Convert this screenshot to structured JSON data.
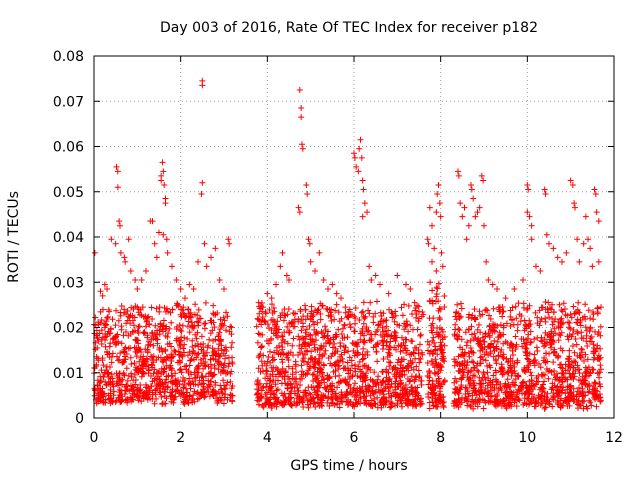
{
  "chart_data": {
    "type": "scatter",
    "title": "Day 003 of 2016, Rate Of TEC Index for receiver p182",
    "xlabel": "GPS time / hours",
    "ylabel": "ROTI / TECUs",
    "xlim": [
      0,
      12
    ],
    "ylim": [
      0,
      0.08
    ],
    "x_ticks": [
      0,
      2,
      4,
      6,
      8,
      10,
      12
    ],
    "x_tick_labels": [
      "0",
      "2",
      "4",
      "6",
      "8",
      "10",
      "12"
    ],
    "y_ticks": [
      0,
      0.01,
      0.02,
      0.03,
      0.04,
      0.05,
      0.06,
      0.07,
      0.08
    ],
    "y_tick_labels": [
      "0",
      "0.01",
      "0.02",
      "0.03",
      "0.04",
      "0.05",
      "0.06",
      "0.07",
      "0.08"
    ],
    "grid": true,
    "marker": "+",
    "marker_color": "#ff0000",
    "series": [
      {
        "name": "ROTI p182",
        "clusters": [
          {
            "x_range": [
              0.0,
              3.2
            ],
            "y_core": [
              0.004,
              0.025
            ],
            "count": 950
          },
          {
            "x_range": [
              3.75,
              7.6
            ],
            "y_core": [
              0.003,
              0.025
            ],
            "count": 1200
          },
          {
            "x_range": [
              7.7,
              8.1
            ],
            "y_core": [
              0.003,
              0.03
            ],
            "count": 160
          },
          {
            "x_range": [
              8.3,
              11.7
            ],
            "y_core": [
              0.003,
              0.025
            ],
            "count": 1050
          }
        ],
        "points": [
          [
            0.02,
            0.0365
          ],
          [
            0.04,
            0.0205
          ],
          [
            0.06,
            0.0135
          ],
          [
            0.1,
            0.017
          ],
          [
            0.15,
            0.028
          ],
          [
            0.2,
            0.027
          ],
          [
            0.25,
            0.0295
          ],
          [
            0.3,
            0.0285
          ],
          [
            0.35,
            0.0235
          ],
          [
            0.4,
            0.0395
          ],
          [
            0.5,
            0.0385
          ],
          [
            0.52,
            0.0555
          ],
          [
            0.55,
            0.0545
          ],
          [
            0.55,
            0.051
          ],
          [
            0.58,
            0.0435
          ],
          [
            0.6,
            0.0425
          ],
          [
            0.62,
            0.0365
          ],
          [
            0.7,
            0.0355
          ],
          [
            0.72,
            0.0345
          ],
          [
            0.8,
            0.0395
          ],
          [
            0.85,
            0.0325
          ],
          [
            0.95,
            0.0305
          ],
          [
            1.0,
            0.0285
          ],
          [
            1.1,
            0.0305
          ],
          [
            1.2,
            0.0325
          ],
          [
            1.3,
            0.0435
          ],
          [
            1.35,
            0.0435
          ],
          [
            1.4,
            0.0385
          ],
          [
            1.45,
            0.0355
          ],
          [
            1.5,
            0.041
          ],
          [
            1.55,
            0.0535
          ],
          [
            1.55,
            0.0525
          ],
          [
            1.58,
            0.0565
          ],
          [
            1.6,
            0.0545
          ],
          [
            1.62,
            0.0515
          ],
          [
            1.65,
            0.0485
          ],
          [
            1.65,
            0.0475
          ],
          [
            1.6,
            0.0405
          ],
          [
            1.68,
            0.0395
          ],
          [
            1.7,
            0.0365
          ],
          [
            1.8,
            0.0335
          ],
          [
            1.9,
            0.0305
          ],
          [
            2.0,
            0.0285
          ],
          [
            2.1,
            0.0265
          ],
          [
            2.2,
            0.0295
          ],
          [
            2.3,
            0.0285
          ],
          [
            2.4,
            0.0345
          ],
          [
            2.5,
            0.0745
          ],
          [
            2.5,
            0.0735
          ],
          [
            2.5,
            0.052
          ],
          [
            2.48,
            0.0495
          ],
          [
            2.55,
            0.0385
          ],
          [
            2.6,
            0.0335
          ],
          [
            2.7,
            0.0355
          ],
          [
            2.8,
            0.0375
          ],
          [
            2.9,
            0.0305
          ],
          [
            3.0,
            0.0285
          ],
          [
            3.1,
            0.0395
          ],
          [
            3.12,
            0.0385
          ],
          [
            3.8,
            0.0255
          ],
          [
            3.9,
            0.0245
          ],
          [
            4.0,
            0.0275
          ],
          [
            4.1,
            0.0265
          ],
          [
            4.2,
            0.0295
          ],
          [
            4.3,
            0.0335
          ],
          [
            4.35,
            0.0365
          ],
          [
            4.45,
            0.0315
          ],
          [
            4.5,
            0.0305
          ],
          [
            4.75,
            0.0725
          ],
          [
            4.78,
            0.0685
          ],
          [
            4.78,
            0.0665
          ],
          [
            4.8,
            0.0605
          ],
          [
            4.82,
            0.0595
          ],
          [
            4.72,
            0.0465
          ],
          [
            4.75,
            0.0455
          ],
          [
            4.9,
            0.0515
          ],
          [
            4.92,
            0.0495
          ],
          [
            4.95,
            0.0395
          ],
          [
            4.98,
            0.0385
          ],
          [
            5.0,
            0.0345
          ],
          [
            5.1,
            0.0325
          ],
          [
            5.2,
            0.0365
          ],
          [
            5.3,
            0.0305
          ],
          [
            5.4,
            0.0285
          ],
          [
            5.5,
            0.0295
          ],
          [
            5.6,
            0.0275
          ],
          [
            5.7,
            0.0265
          ],
          [
            5.8,
            0.0245
          ],
          [
            6.0,
            0.0585
          ],
          [
            6.02,
            0.0575
          ],
          [
            6.05,
            0.0555
          ],
          [
            6.1,
            0.0545
          ],
          [
            6.12,
            0.0595
          ],
          [
            6.15,
            0.0615
          ],
          [
            6.18,
            0.0575
          ],
          [
            6.2,
            0.0525
          ],
          [
            6.22,
            0.0505
          ],
          [
            6.2,
            0.0445
          ],
          [
            6.25,
            0.0475
          ],
          [
            6.3,
            0.0455
          ],
          [
            6.35,
            0.0335
          ],
          [
            6.4,
            0.0305
          ],
          [
            6.5,
            0.0315
          ],
          [
            6.6,
            0.0295
          ],
          [
            6.8,
            0.0275
          ],
          [
            7.0,
            0.0315
          ],
          [
            7.2,
            0.0295
          ],
          [
            7.3,
            0.0285
          ],
          [
            7.4,
            0.0255
          ],
          [
            7.5,
            0.0235
          ],
          [
            7.7,
            0.0395
          ],
          [
            7.72,
            0.0385
          ],
          [
            7.75,
            0.0465
          ],
          [
            7.8,
            0.0425
          ],
          [
            7.85,
            0.0375
          ],
          [
            7.9,
            0.0455
          ],
          [
            7.92,
            0.0495
          ],
          [
            7.95,
            0.0515
          ],
          [
            7.98,
            0.0475
          ],
          [
            8.0,
            0.0445
          ],
          [
            8.02,
            0.0365
          ],
          [
            8.05,
            0.0335
          ],
          [
            7.8,
            0.0345
          ],
          [
            7.9,
            0.0325
          ],
          [
            8.4,
            0.0545
          ],
          [
            8.42,
            0.0535
          ],
          [
            8.45,
            0.0475
          ],
          [
            8.5,
            0.0445
          ],
          [
            8.55,
            0.0465
          ],
          [
            8.6,
            0.0395
          ],
          [
            8.65,
            0.0425
          ],
          [
            8.7,
            0.0515
          ],
          [
            8.72,
            0.0505
          ],
          [
            8.75,
            0.0485
          ],
          [
            8.8,
            0.0445
          ],
          [
            8.85,
            0.0455
          ],
          [
            8.9,
            0.0465
          ],
          [
            8.95,
            0.0535
          ],
          [
            8.98,
            0.0525
          ],
          [
            9.0,
            0.0425
          ],
          [
            9.05,
            0.0345
          ],
          [
            9.1,
            0.0305
          ],
          [
            9.2,
            0.0295
          ],
          [
            9.3,
            0.0285
          ],
          [
            9.5,
            0.0265
          ],
          [
            9.7,
            0.0285
          ],
          [
            9.9,
            0.0305
          ],
          [
            10.0,
            0.0515
          ],
          [
            10.02,
            0.0505
          ],
          [
            10.0,
            0.0455
          ],
          [
            10.05,
            0.0445
          ],
          [
            10.1,
            0.0425
          ],
          [
            10.1,
            0.0395
          ],
          [
            10.2,
            0.0335
          ],
          [
            10.3,
            0.0325
          ],
          [
            10.4,
            0.0505
          ],
          [
            10.42,
            0.0495
          ],
          [
            10.45,
            0.0405
          ],
          [
            10.5,
            0.0385
          ],
          [
            10.6,
            0.0375
          ],
          [
            10.7,
            0.0355
          ],
          [
            10.8,
            0.0345
          ],
          [
            10.9,
            0.0365
          ],
          [
            11.0,
            0.0525
          ],
          [
            11.05,
            0.0515
          ],
          [
            11.08,
            0.0475
          ],
          [
            11.1,
            0.0465
          ],
          [
            11.15,
            0.0395
          ],
          [
            11.2,
            0.0345
          ],
          [
            11.3,
            0.0385
          ],
          [
            11.35,
            0.0445
          ],
          [
            11.4,
            0.0395
          ],
          [
            11.45,
            0.0375
          ],
          [
            11.5,
            0.0335
          ],
          [
            11.55,
            0.0505
          ],
          [
            11.58,
            0.0495
          ],
          [
            11.6,
            0.0455
          ],
          [
            11.65,
            0.0435
          ],
          [
            11.65,
            0.0345
          ],
          [
            11.7,
            0.0245
          ],
          [
            7.9,
            0.0025
          ],
          [
            8.7,
            0.0025
          ],
          [
            8.9,
            0.0035
          ],
          [
            10.7,
            0.0035
          ],
          [
            0.5,
            0.0035
          ],
          [
            4.4,
            0.0035
          ],
          [
            6.6,
            0.0035
          ],
          [
            2.1,
            0.0045
          ]
        ]
      }
    ]
  }
}
